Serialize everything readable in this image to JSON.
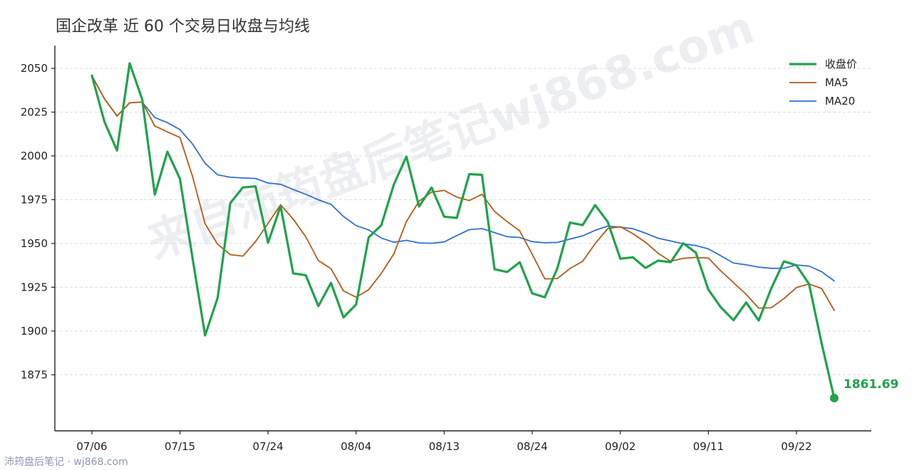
{
  "footer": "沛筠盘后笔记 · wj868.com",
  "watermark": "来自沛筠盘后笔记wj868.com",
  "colors": {
    "close": "#1fa34a",
    "ma5": "#b85a12",
    "ma20": "#2f6fd8"
  },
  "chart_data": {
    "type": "line",
    "title": "国企改革 近 60 个交易日收盘与均线",
    "xlabel": "",
    "ylabel": "",
    "ylim": [
      1843,
      2063
    ],
    "yticks": [
      "1875",
      "1900",
      "1925",
      "1950",
      "1975",
      "2000",
      "2025",
      "2050"
    ],
    "xticks": [
      {
        "index": 0,
        "label": "07/06"
      },
      {
        "index": 7,
        "label": "07/15"
      },
      {
        "index": 14,
        "label": "07/24"
      },
      {
        "index": 21,
        "label": "08/04"
      },
      {
        "index": 28,
        "label": "08/13"
      },
      {
        "index": 35,
        "label": "08/24"
      },
      {
        "index": 42,
        "label": "09/02"
      },
      {
        "index": 49,
        "label": "09/11"
      },
      {
        "index": 56,
        "label": "09/22"
      }
    ],
    "grid": "horizontal-dashed",
    "legend": "top-right",
    "series": [
      {
        "name": "收盘价",
        "key": "close",
        "values": [
          2045.8,
          2019.4,
          2003.1,
          2052.9,
          2032.3,
          1977.9,
          2002.4,
          1986.9,
          1941.5,
          1897.5,
          1919.1,
          1973.1,
          1982.0,
          1982.6,
          1950.4,
          1971.4,
          1932.9,
          1931.9,
          1914.2,
          1927.5,
          1907.8,
          1915.2,
          1953.5,
          1960.4,
          1983.7,
          1999.6,
          1971.1,
          1981.9,
          1965.3,
          1964.6,
          1989.6,
          1989.2,
          1935.3,
          1933.7,
          1939.3,
          1921.5,
          1919.3,
          1936.0,
          1961.9,
          1960.5,
          1971.9,
          1962.3,
          1941.3,
          1942.1,
          1936.0,
          1940.2,
          1939.3,
          1950.1,
          1944.8,
          1923.6,
          1913.4,
          1906.2,
          1916.3,
          1906.0,
          1924.4,
          1939.8,
          1937.5,
          1926.8,
          1893.0,
          1861.69
        ]
      },
      {
        "name": "MA5",
        "key": "ma5",
        "values": [
          2045.8,
          2032.6,
          2022.8,
          2030.3,
          2030.7,
          2017.1,
          2013.7,
          2010.5,
          1988.2,
          1961.2,
          1949.5,
          1943.6,
          1942.8,
          1951.0,
          1961.5,
          1972.1,
          1963.9,
          1953.8,
          1940.2,
          1935.6,
          1922.9,
          1919.3,
          1923.6,
          1932.9,
          1944.1,
          1962.5,
          1974.1,
          1979.3,
          1980.3,
          1976.5,
          1974.5,
          1978.1,
          1968.3,
          1962.5,
          1957.2,
          1943.8,
          1929.8,
          1930.0,
          1935.7,
          1939.8,
          1949.9,
          1958.5,
          1959.6,
          1955.6,
          1950.7,
          1944.4,
          1939.8,
          1941.5,
          1942.0,
          1941.6,
          1934.2,
          1927.6,
          1920.9,
          1913.1,
          1913.3,
          1918.5,
          1924.8,
          1926.9,
          1924.3,
          1911.8
        ]
      },
      {
        "name": "MA20",
        "key": "ma20",
        "values": [
          2045.8,
          2032.6,
          2022.8,
          2030.3,
          2030.7,
          2021.9,
          2019.0,
          2015.0,
          2006.8,
          1995.8,
          1989.2,
          1987.8,
          1987.4,
          1987.1,
          1984.5,
          1983.8,
          1980.8,
          1978.1,
          1974.9,
          1972.3,
          1965.4,
          1960.2,
          1957.7,
          1953.1,
          1950.7,
          1951.8,
          1950.3,
          1950.1,
          1950.9,
          1954.5,
          1957.9,
          1958.5,
          1956.2,
          1953.9,
          1953.4,
          1951.0,
          1950.4,
          1950.6,
          1952.5,
          1954.3,
          1957.5,
          1959.9,
          1959.3,
          1958.4,
          1955.9,
          1953.0,
          1951.4,
          1949.8,
          1948.8,
          1946.9,
          1942.9,
          1938.8,
          1937.8,
          1936.5,
          1935.8,
          1935.9,
          1937.7,
          1937.1,
          1933.9,
          1928.6
        ]
      }
    ],
    "end_label": {
      "value": "1861.69"
    }
  }
}
